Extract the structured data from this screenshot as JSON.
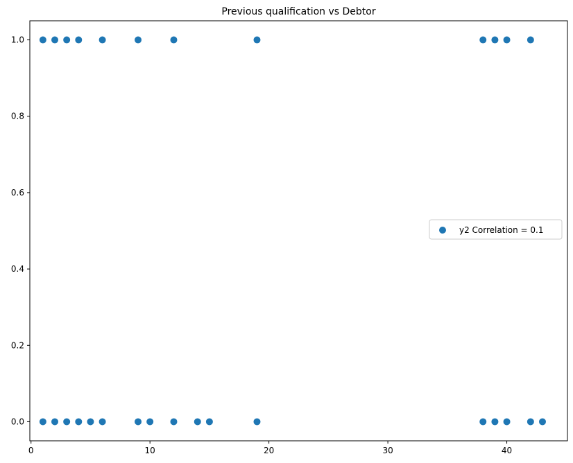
{
  "chart_data": {
    "type": "scatter",
    "title": "Previous qualification vs Debtor",
    "xlabel": "",
    "ylabel": "",
    "xlim": [
      -0.1,
      45.1
    ],
    "ylim": [
      -0.05,
      1.05
    ],
    "x_ticks": [
      0,
      10,
      20,
      30,
      40
    ],
    "y_ticks": [
      0.0,
      0.2,
      0.4,
      0.6,
      0.8,
      1.0
    ],
    "x_tick_labels": [
      "0",
      "10",
      "20",
      "30",
      "40"
    ],
    "y_tick_labels": [
      "0.0",
      "0.2",
      "0.4",
      "0.6",
      "0.8",
      "1.0"
    ],
    "grid": false,
    "legend_position": "center-right",
    "series": [
      {
        "name": "y2 Correlation = 0.1",
        "color": "#1f77b4",
        "points": [
          [
            1,
            1
          ],
          [
            2,
            1
          ],
          [
            3,
            1
          ],
          [
            4,
            1
          ],
          [
            6,
            1
          ],
          [
            9,
            1
          ],
          [
            12,
            1
          ],
          [
            19,
            1
          ],
          [
            38,
            1
          ],
          [
            39,
            1
          ],
          [
            40,
            1
          ],
          [
            42,
            1
          ],
          [
            1,
            0
          ],
          [
            2,
            0
          ],
          [
            3,
            0
          ],
          [
            4,
            0
          ],
          [
            5,
            0
          ],
          [
            6,
            0
          ],
          [
            9,
            0
          ],
          [
            10,
            0
          ],
          [
            12,
            0
          ],
          [
            14,
            0
          ],
          [
            15,
            0
          ],
          [
            19,
            0
          ],
          [
            38,
            0
          ],
          [
            39,
            0
          ],
          [
            40,
            0
          ],
          [
            42,
            0
          ],
          [
            43,
            0
          ]
        ]
      }
    ]
  }
}
